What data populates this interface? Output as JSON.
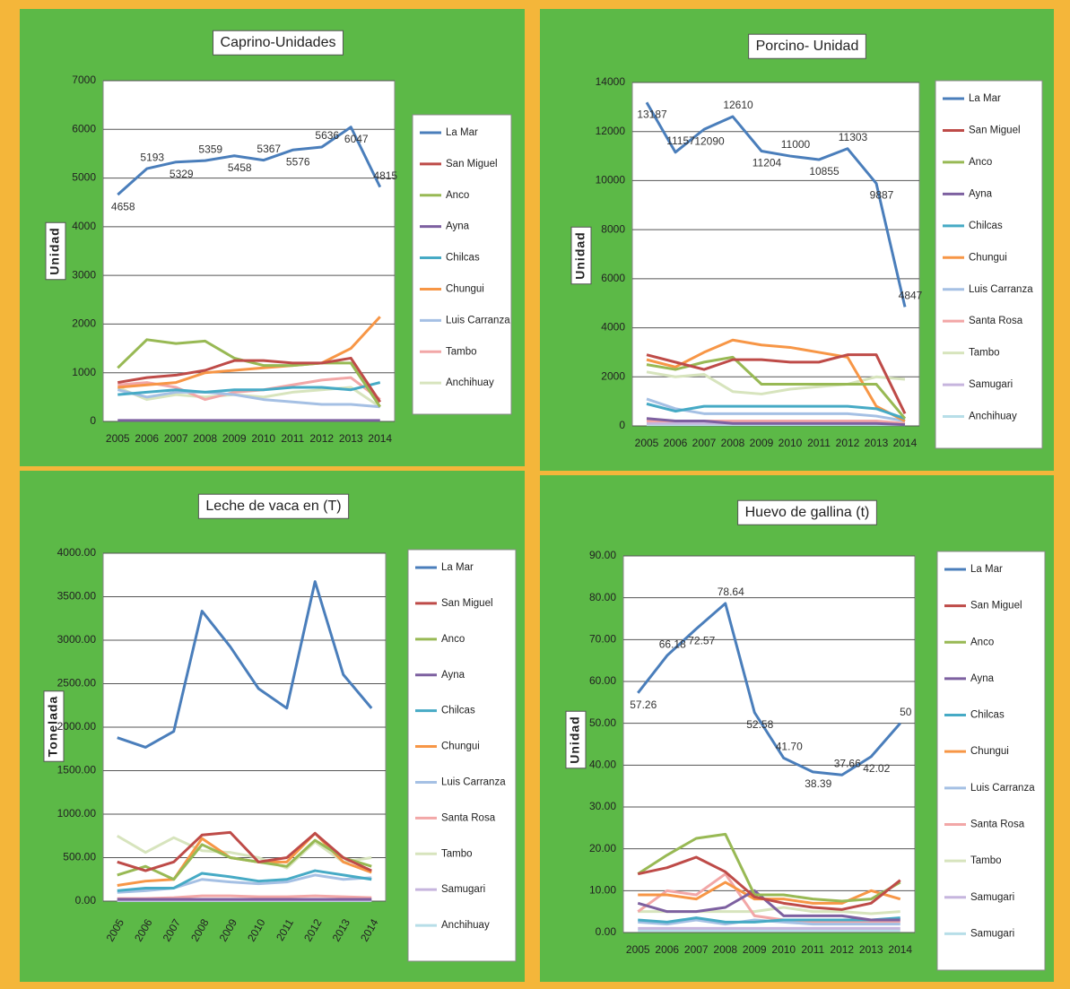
{
  "chart_data": [
    {
      "type": "line",
      "title": "Caprino-Unidades",
      "y_label": "Unidad",
      "categories": [
        "2005",
        "2006",
        "2007",
        "2008",
        "2009",
        "2010",
        "2011",
        "2012",
        "2013",
        "2014"
      ],
      "ylim": [
        0,
        7000
      ],
      "yticks": [
        0,
        1000,
        2000,
        3000,
        4000,
        5000,
        6000,
        7000
      ],
      "grid": true,
      "series": [
        {
          "name": "La Mar",
          "color": "#4a7ebb",
          "data_labels": true,
          "values": [
            4658,
            5193,
            5329,
            5359,
            5458,
            5367,
            5576,
            5636,
            6047,
            4815
          ]
        },
        {
          "name": "San Miguel",
          "color": "#be4b48",
          "values": [
            800,
            900,
            950,
            1050,
            1250,
            1250,
            1200,
            1200,
            1300,
            400
          ]
        },
        {
          "name": "Anco",
          "color": "#98b954",
          "values": [
            1100,
            1680,
            1600,
            1650,
            1300,
            1150,
            1150,
            1200,
            1200,
            300
          ]
        },
        {
          "name": "Ayna",
          "color": "#7d60a0",
          "values": [
            20,
            20,
            20,
            20,
            20,
            20,
            20,
            20,
            20,
            20
          ]
        },
        {
          "name": "Chilcas",
          "color": "#46aac5",
          "values": [
            550,
            600,
            650,
            600,
            650,
            650,
            700,
            700,
            650,
            800
          ]
        },
        {
          "name": "Chungui",
          "color": "#f79646",
          "values": [
            700,
            750,
            800,
            1000,
            1050,
            1100,
            1150,
            1200,
            1500,
            2150
          ]
        },
        {
          "name": "Luis Carranza",
          "color": "#a5c0e4",
          "values": [
            650,
            500,
            600,
            600,
            550,
            450,
            400,
            350,
            350,
            300
          ]
        },
        {
          "name": "Tambo",
          "color": "#f2a7a7",
          "values": [
            750,
            800,
            700,
            450,
            600,
            650,
            750,
            850,
            900,
            450
          ]
        },
        {
          "name": "Anchihuay",
          "color": "#d7e4bd",
          "values": [
            700,
            450,
            550,
            500,
            550,
            500,
            600,
            650,
            700,
            300
          ]
        }
      ]
    },
    {
      "type": "line",
      "title": "Porcino- Unidad",
      "y_label": "Unidad",
      "categories": [
        "2005",
        "2006",
        "2007",
        "2008",
        "2009",
        "2010",
        "2011",
        "2012",
        "2013",
        "2014"
      ],
      "ylim": [
        0,
        14000
      ],
      "yticks": [
        0,
        2000,
        4000,
        6000,
        8000,
        10000,
        12000,
        14000
      ],
      "grid": true,
      "series": [
        {
          "name": "La Mar",
          "color": "#4a7ebb",
          "data_labels": true,
          "values": [
            13187,
            11157,
            12090,
            12610,
            11204,
            11000,
            10855,
            11303,
            9887,
            4847
          ]
        },
        {
          "name": "San Miguel",
          "color": "#be4b48",
          "values": [
            2900,
            2600,
            2300,
            2700,
            2700,
            2600,
            2600,
            2900,
            2900,
            500
          ]
        },
        {
          "name": "Anco",
          "color": "#98b954",
          "values": [
            2500,
            2300,
            2600,
            2800,
            1700,
            1700,
            1700,
            1700,
            1700,
            300
          ]
        },
        {
          "name": "Ayna",
          "color": "#7d60a0",
          "values": [
            300,
            200,
            200,
            100,
            100,
            100,
            100,
            100,
            100,
            50
          ]
        },
        {
          "name": "Chilcas",
          "color": "#46aac5",
          "values": [
            900,
            600,
            800,
            800,
            800,
            800,
            800,
            800,
            700,
            300
          ]
        },
        {
          "name": "Chungui",
          "color": "#f79646",
          "values": [
            2700,
            2400,
            3000,
            3500,
            3300,
            3200,
            3000,
            2800,
            800,
            200
          ]
        },
        {
          "name": "Luis Carranza",
          "color": "#a5c0e4",
          "values": [
            1100,
            700,
            500,
            500,
            500,
            500,
            500,
            500,
            400,
            200
          ]
        },
        {
          "name": "Santa Rosa",
          "color": "#f2a7a7",
          "values": [
            200,
            200,
            200,
            200,
            200,
            200,
            200,
            200,
            200,
            100
          ]
        },
        {
          "name": "Tambo",
          "color": "#d7e4bd",
          "values": [
            2200,
            2000,
            2100,
            1400,
            1300,
            1500,
            1600,
            1700,
            2000,
            1900
          ]
        },
        {
          "name": "Samugari",
          "color": "#c6b5de",
          "values": [
            100,
            100,
            100,
            100,
            100,
            100,
            100,
            100,
            100,
            100
          ]
        },
        {
          "name": "Anchihuay",
          "color": "#b7dee8",
          "values": [
            50,
            50,
            50,
            50,
            50,
            50,
            50,
            50,
            50,
            50
          ]
        }
      ]
    },
    {
      "type": "line",
      "title": "Leche de vaca en (T)",
      "y_label": "Tonelada",
      "categories": [
        "2005",
        "2006",
        "2007",
        "2008",
        "2009",
        "2010",
        "2011",
        "2012",
        "2013",
        "2014"
      ],
      "ylim": [
        0,
        4000
      ],
      "yticks": [
        {
          "value": 0,
          "label": "0.00"
        },
        {
          "value": 500,
          "label": "500.00"
        },
        {
          "value": 1000,
          "label": "1000.00"
        },
        {
          "value": 1500,
          "label": "1500.00"
        },
        {
          "value": 2000,
          "label": "2000.00"
        },
        {
          "value": 2500,
          "label": "2500.00"
        },
        {
          "value": 3000,
          "label": "3000.00"
        },
        {
          "value": 3500,
          "label": "3500.00"
        },
        {
          "value": 4000,
          "label": "4000.00"
        }
      ],
      "grid": true,
      "series": [
        {
          "name": "La Mar",
          "color": "#4a7ebb",
          "values": [
            1879.86,
            1769.06,
            1951.57,
            3334.57,
            2924.78,
            2443.04,
            2218.27,
            3674.05,
            2604.41,
            2218
          ]
        },
        {
          "name": "San Miguel",
          "color": "#be4b48",
          "values": [
            450,
            350,
            450,
            760,
            790,
            450,
            500,
            780,
            500,
            350
          ]
        },
        {
          "name": "Anco",
          "color": "#98b954",
          "values": [
            300,
            400,
            250,
            650,
            500,
            450,
            400,
            700,
            500,
            400
          ]
        },
        {
          "name": "Ayna",
          "color": "#7d60a0",
          "values": [
            20,
            20,
            20,
            20,
            20,
            20,
            20,
            20,
            20,
            20
          ]
        },
        {
          "name": "Chilcas",
          "color": "#46aac5",
          "values": [
            120,
            150,
            150,
            320,
            280,
            230,
            250,
            350,
            300,
            250
          ]
        },
        {
          "name": "Chungui",
          "color": "#f79646",
          "values": [
            180,
            230,
            250,
            720,
            500,
            450,
            450,
            780,
            450,
            330
          ]
        },
        {
          "name": "Luis Carranza",
          "color": "#a5c0e4",
          "values": [
            100,
            120,
            150,
            250,
            220,
            200,
            220,
            300,
            250,
            270
          ]
        },
        {
          "name": "Santa Rosa",
          "color": "#f2a7a7",
          "values": [
            30,
            30,
            40,
            60,
            60,
            50,
            50,
            60,
            50,
            40
          ]
        },
        {
          "name": "Tambo",
          "color": "#d7e4bd",
          "values": [
            750,
            560,
            730,
            580,
            560,
            500,
            380,
            680,
            450,
            500
          ]
        },
        {
          "name": "Samugari",
          "color": "#c6b5de",
          "values": [
            10,
            10,
            10,
            10,
            10,
            10,
            10,
            10,
            10,
            10
          ]
        },
        {
          "name": "Anchihuay",
          "color": "#b7dee8",
          "values": [
            5,
            5,
            5,
            5,
            5,
            5,
            5,
            5,
            5,
            5
          ]
        }
      ]
    },
    {
      "type": "line",
      "title": "Huevo de gallina (t)",
      "y_label": "Unidad",
      "categories": [
        "2005",
        "2006",
        "2007",
        "2008",
        "2009",
        "2010",
        "2011",
        "2012",
        "2013",
        "2014"
      ],
      "ylim": [
        0,
        90
      ],
      "yticks": [
        {
          "value": 0,
          "label": "0.00"
        },
        {
          "value": 10,
          "label": "10.00"
        },
        {
          "value": 20,
          "label": "20.00"
        },
        {
          "value": 30,
          "label": "30.00"
        },
        {
          "value": 40,
          "label": "40.00"
        },
        {
          "value": 50,
          "label": "50.00"
        },
        {
          "value": 60,
          "label": "60.00"
        },
        {
          "value": 70,
          "label": "70.00"
        },
        {
          "value": 80,
          "label": "80.00"
        },
        {
          "value": 90,
          "label": "90.00"
        }
      ],
      "grid": true,
      "series": [
        {
          "name": "La Mar",
          "color": "#4a7ebb",
          "values": [
            57.26,
            66.18,
            72.57,
            78.64,
            52.58,
            41.7,
            38.39,
            37.66,
            42.02,
            50
          ],
          "value_labels": [
            "57.26",
            "66.18",
            "72.57",
            "78.64",
            "52.58",
            "41.70",
            "38.39",
            "37.66",
            "42.02",
            "50"
          ]
        },
        {
          "name": "San Miguel",
          "color": "#be4b48",
          "values": [
            14,
            15.5,
            18,
            14.5,
            8.5,
            7,
            6,
            5.5,
            7,
            12.5
          ]
        },
        {
          "name": "Anco",
          "color": "#98b954",
          "values": [
            14,
            18.5,
            22.5,
            23.5,
            9,
            9,
            8,
            7.5,
            8,
            12
          ]
        },
        {
          "name": "Ayna",
          "color": "#7d60a0",
          "values": [
            7,
            5,
            5,
            6,
            10,
            4,
            4,
            4,
            3,
            3
          ]
        },
        {
          "name": "Chilcas",
          "color": "#46aac5",
          "values": [
            3,
            2.5,
            3.5,
            2.5,
            2.5,
            3,
            3,
            3,
            3,
            3.5
          ]
        },
        {
          "name": "Chungui",
          "color": "#f79646",
          "values": [
            9,
            9,
            8,
            12,
            8,
            8,
            7,
            7,
            10,
            8
          ]
        },
        {
          "name": "Luis Carranza",
          "color": "#a5c0e4",
          "values": [
            2.5,
            2,
            3,
            2,
            3,
            2.5,
            2,
            2,
            2,
            2
          ]
        },
        {
          "name": "Santa Rosa",
          "color": "#f2a7a7",
          "values": [
            5,
            10,
            9,
            14,
            4,
            3,
            2.5,
            2.5,
            2.5,
            2.5
          ]
        },
        {
          "name": "Tambo",
          "color": "#d7e4bd",
          "values": [
            5,
            5,
            5,
            5,
            5,
            6,
            5,
            5,
            4.5,
            5
          ]
        },
        {
          "name": "Samugari",
          "color": "#c6b5de",
          "values": [
            1,
            1,
            1,
            1,
            1,
            1,
            1,
            1,
            1,
            1
          ]
        },
        {
          "name": "Samugari",
          "color": "#b7dee8",
          "values": [
            0.5,
            0.5,
            0.5,
            0.5,
            0.5,
            0.5,
            0.5,
            0.5,
            0.5,
            0.5
          ]
        }
      ]
    }
  ]
}
